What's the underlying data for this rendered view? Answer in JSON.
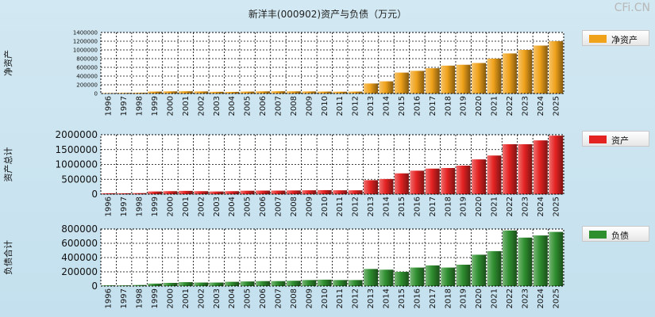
{
  "title": "新洋丰(000902)资产与负债（万元）",
  "watermark": "CFi.CN",
  "chart_data": [
    {
      "type": "bar",
      "ylabel": "净资产",
      "legend": "净资产",
      "color": "#f0a21a",
      "ylim": [
        0,
        1400000
      ],
      "yticks": [
        0,
        200000,
        400000,
        600000,
        800000,
        1000000,
        1200000,
        1400000
      ],
      "categories": [
        "1996",
        "1997",
        "1998",
        "1999",
        "2000",
        "2001",
        "2002",
        "2003",
        "2004",
        "2005",
        "2006",
        "2007",
        "2008",
        "2009",
        "2010",
        "2011",
        "2012",
        "2013",
        "2014",
        "2015",
        "2016",
        "2017",
        "2018",
        "2019",
        "2020",
        "2021",
        "2022",
        "2023",
        "2024",
        "2025"
      ],
      "values": [
        10000,
        15000,
        18000,
        45000,
        50000,
        52000,
        48000,
        40000,
        38000,
        45000,
        50000,
        52000,
        50000,
        48000,
        45000,
        42000,
        45000,
        230000,
        280000,
        480000,
        520000,
        580000,
        640000,
        660000,
        700000,
        800000,
        920000,
        1000000,
        1100000,
        1200000
      ]
    },
    {
      "type": "bar",
      "ylabel": "资产总计",
      "legend": "资产",
      "color": "#e52222",
      "ylim": [
        0,
        2000000
      ],
      "yticks": [
        0,
        500000,
        1000000,
        1500000,
        2000000
      ],
      "categories": [
        "1996",
        "1997",
        "1998",
        "1999",
        "2000",
        "2001",
        "2002",
        "2003",
        "2004",
        "2005",
        "2006",
        "2007",
        "2008",
        "2009",
        "2010",
        "2011",
        "2012",
        "2013",
        "2014",
        "2015",
        "2016",
        "2017",
        "2018",
        "2019",
        "2020",
        "2021",
        "2022",
        "2023",
        "2024",
        "2025"
      ],
      "values": [
        30000,
        30000,
        35000,
        90000,
        100000,
        110000,
        100000,
        90000,
        100000,
        115000,
        120000,
        120000,
        125000,
        130000,
        135000,
        130000,
        130000,
        470000,
        510000,
        700000,
        790000,
        860000,
        880000,
        960000,
        1170000,
        1300000,
        1680000,
        1680000,
        1810000,
        1970000
      ]
    },
    {
      "type": "bar",
      "ylabel": "负债合计",
      "legend": "负债",
      "color": "#2f8f2f",
      "ylim": [
        0,
        800000
      ],
      "yticks": [
        0,
        200000,
        400000,
        600000,
        800000
      ],
      "categories": [
        "1996",
        "1997",
        "1998",
        "1999",
        "2000",
        "2001",
        "2002",
        "2003",
        "2004",
        "2005",
        "2006",
        "2007",
        "2008",
        "2009",
        "2010",
        "2011",
        "2012",
        "2013",
        "2014",
        "2015",
        "2016",
        "2017",
        "2018",
        "2019",
        "2020",
        "2021",
        "2022",
        "2023",
        "2024",
        "2025"
      ],
      "values": [
        10000,
        10000,
        15000,
        35000,
        45000,
        55000,
        50000,
        50000,
        60000,
        65000,
        70000,
        70000,
        75000,
        85000,
        90000,
        85000,
        85000,
        240000,
        230000,
        200000,
        260000,
        290000,
        260000,
        300000,
        440000,
        490000,
        780000,
        680000,
        710000,
        760000
      ]
    }
  ]
}
